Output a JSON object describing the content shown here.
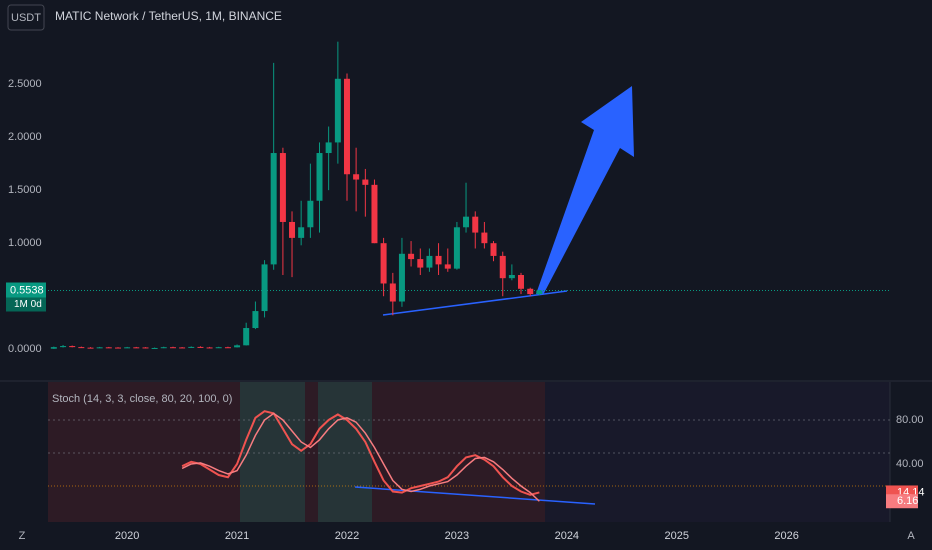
{
  "header": {
    "symbol_button": "USDT",
    "title": "MATIC Network / TetherUS, 1M, BINANCE"
  },
  "chart_data": [
    {
      "type": "candlestick",
      "x": [
        2019.333,
        2019.417,
        2019.5,
        2019.583,
        2019.667,
        2019.75,
        2019.833,
        2019.917,
        2020,
        2020.083,
        2020.167,
        2020.25,
        2020.333,
        2020.417,
        2020.5,
        2020.583,
        2020.667,
        2020.75,
        2020.833,
        2020.917,
        2021,
        2021.083,
        2021.167,
        2021.25,
        2021.333,
        2021.417,
        2021.5,
        2021.583,
        2021.667,
        2021.75,
        2021.833,
        2021.917,
        2022,
        2022.083,
        2022.167,
        2022.25,
        2022.333,
        2022.417,
        2022.5,
        2022.583,
        2022.667,
        2022.75,
        2022.833,
        2022.917,
        2023,
        2023.083,
        2023.167,
        2023.25,
        2023.333,
        2023.417,
        2023.5,
        2023.583,
        2023.667,
        2023.75
      ],
      "open": [
        0.005,
        0.02,
        0.03,
        0.02,
        0.015,
        0.014,
        0.018,
        0.016,
        0.015,
        0.018,
        0.017,
        0.011,
        0.012,
        0.019,
        0.017,
        0.016,
        0.022,
        0.017,
        0.015,
        0.019,
        0.018,
        0.037,
        0.2,
        0.36,
        0.8,
        1.85,
        1.2,
        1.05,
        1.15,
        1.4,
        1.85,
        1.95,
        2.55,
        1.65,
        1.6,
        1.55,
        1.0,
        0.62,
        0.45,
        0.9,
        0.85,
        0.77,
        0.88,
        0.8,
        0.76,
        1.15,
        1.25,
        1.1,
        1.0,
        0.88,
        0.67,
        0.7,
        0.57,
        0.52
      ],
      "high": [
        0.025,
        0.04,
        0.035,
        0.025,
        0.02,
        0.022,
        0.022,
        0.02,
        0.022,
        0.022,
        0.02,
        0.016,
        0.024,
        0.024,
        0.021,
        0.027,
        0.028,
        0.022,
        0.023,
        0.024,
        0.045,
        0.25,
        0.45,
        0.84,
        2.7,
        1.9,
        1.3,
        1.4,
        1.75,
        1.95,
        2.1,
        2.9,
        2.6,
        1.9,
        1.7,
        1.6,
        1.05,
        0.72,
        1.05,
        1.02,
        0.95,
        0.95,
        1.0,
        0.95,
        1.2,
        1.57,
        1.3,
        1.2,
        1.02,
        0.92,
        0.8,
        0.72,
        0.58,
        0.56
      ],
      "low": [
        0.003,
        0.016,
        0.018,
        0.012,
        0.011,
        0.011,
        0.013,
        0.012,
        0.012,
        0.014,
        0.008,
        0.007,
        0.01,
        0.014,
        0.013,
        0.013,
        0.014,
        0.012,
        0.012,
        0.015,
        0.016,
        0.035,
        0.19,
        0.3,
        0.75,
        0.7,
        0.68,
        0.98,
        1.05,
        1.1,
        1.5,
        1.75,
        1.4,
        1.3,
        1.25,
        1.0,
        0.5,
        0.32,
        0.4,
        0.78,
        0.7,
        0.73,
        0.7,
        0.73,
        0.75,
        1.1,
        0.95,
        0.95,
        0.83,
        0.5,
        0.65,
        0.52,
        0.5,
        0.51
      ],
      "close": [
        0.02,
        0.03,
        0.02,
        0.015,
        0.014,
        0.018,
        0.016,
        0.015,
        0.018,
        0.017,
        0.011,
        0.012,
        0.019,
        0.017,
        0.016,
        0.022,
        0.017,
        0.015,
        0.019,
        0.018,
        0.037,
        0.2,
        0.36,
        0.8,
        1.85,
        1.2,
        1.05,
        1.15,
        1.4,
        1.85,
        1.95,
        2.55,
        1.65,
        1.6,
        1.55,
        1.0,
        0.62,
        0.45,
        0.9,
        0.85,
        0.77,
        0.88,
        0.8,
        0.76,
        1.15,
        1.25,
        1.1,
        1.0,
        0.88,
        0.67,
        0.7,
        0.57,
        0.52,
        0.5538
      ],
      "up_color": "#089981",
      "down_color": "#f23645",
      "xlim": [
        2019.28,
        2026.94
      ],
      "xticks": [
        2020,
        2021,
        2022,
        2023,
        2024,
        2025,
        2026
      ],
      "ylim": [
        -0.29,
        3.01
      ],
      "yticks": [
        {
          "value": 0,
          "label": "0.0000"
        },
        {
          "value": 1,
          "label": "1.0000"
        },
        {
          "value": 1.5,
          "label": "1.5000"
        },
        {
          "value": 2,
          "label": "2.0000"
        },
        {
          "value": 2.5,
          "label": "2.5000"
        }
      ],
      "last_price": 0.5538,
      "last_price_note": "1M 0d"
    },
    {
      "type": "line",
      "title": "Stoch (14, 3, 3, close, 80, 20, 100, 0)",
      "x": [
        2020.5,
        2020.583,
        2020.667,
        2020.75,
        2020.833,
        2020.917,
        2021,
        2021.083,
        2021.167,
        2021.25,
        2021.333,
        2021.417,
        2021.5,
        2021.583,
        2021.667,
        2021.75,
        2021.833,
        2021.917,
        2022,
        2022.083,
        2022.167,
        2022.25,
        2022.333,
        2022.417,
        2022.5,
        2022.583,
        2022.667,
        2022.75,
        2022.833,
        2022.917,
        2023,
        2023.083,
        2023.167,
        2023.25,
        2023.333,
        2023.417,
        2023.5,
        2023.583,
        2023.667,
        2023.75
      ],
      "series": [
        {
          "color": "#ef5350",
          "values": [
            38,
            42,
            40,
            35,
            30,
            28,
            40,
            62,
            82,
            88,
            86,
            72,
            58,
            52,
            58,
            72,
            80,
            85,
            80,
            72,
            60,
            42,
            25,
            15,
            14,
            18,
            20,
            22,
            24,
            28,
            38,
            46,
            48,
            44,
            38,
            28,
            20,
            15,
            12,
            14.14
          ]
        },
        {
          "color": "#f77c80",
          "values": [
            36,
            40,
            41,
            38,
            34,
            31,
            34,
            48,
            66,
            80,
            86,
            80,
            70,
            60,
            55,
            62,
            72,
            80,
            82,
            78,
            68,
            55,
            40,
            25,
            17,
            15,
            17,
            20,
            22,
            24,
            30,
            38,
            45,
            46,
            42,
            35,
            27,
            20,
            14,
            6.16
          ]
        }
      ],
      "xlim": [
        2019.28,
        2026.94
      ],
      "ylim": [
        -12.7,
        114.5
      ],
      "yticks": [
        {
          "value": 80,
          "label": "80.00"
        },
        {
          "value": 40,
          "label": "40.00"
        }
      ],
      "levels": [
        80,
        50,
        20
      ]
    }
  ],
  "footer": {
    "left_icon": "Z",
    "right_icon": "A"
  }
}
